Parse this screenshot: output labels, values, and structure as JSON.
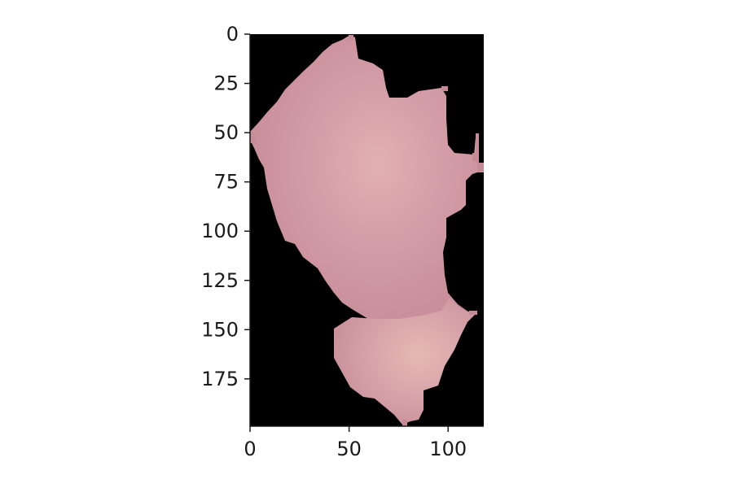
{
  "image": {
    "subject": "segmented-tissue-patch",
    "background_color": "#000000",
    "region_colors": {
      "tissue_base": "#cf97a1",
      "tissue_light": "#e4b3b1",
      "tissue_edge": "#c58c97"
    }
  },
  "axes": {
    "x": {
      "ticks": [
        0,
        50,
        100
      ],
      "range": [
        0,
        118
      ]
    },
    "y": {
      "ticks": [
        0,
        25,
        50,
        75,
        100,
        125,
        150,
        175
      ],
      "range": [
        0,
        199
      ],
      "inverted": true
    },
    "spine_color": "#1a1a1a",
    "tick_color": "#1a1a1a"
  }
}
